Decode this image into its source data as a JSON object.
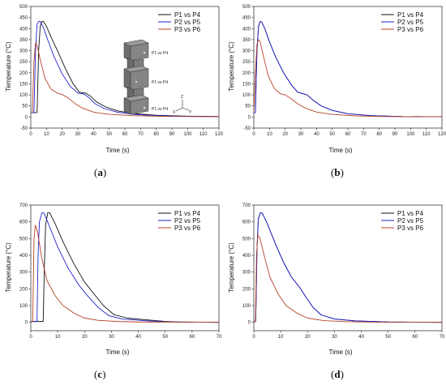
{
  "colors": {
    "P1 vs P4": "#111111",
    "P2 vs P5": "#2222cc",
    "P3 vs P6": "#b5432a"
  },
  "chart_data": [
    {
      "id": "a",
      "panel_label": "a",
      "type": "line",
      "xlabel": "Time (s)",
      "ylabel": "Temperature (°C)",
      "xlim": [
        0,
        120
      ],
      "ylim": [
        -50,
        500
      ],
      "xticks": [
        0,
        10,
        20,
        30,
        40,
        50,
        60,
        70,
        80,
        90,
        100,
        110,
        120
      ],
      "yticks": [
        -50,
        0,
        50,
        100,
        150,
        200,
        250,
        300,
        350,
        400,
        450,
        500
      ],
      "legend_position": "top-right",
      "series": [
        {
          "name": "P1 vs P4",
          "points": [
            [
              0,
              20
            ],
            [
              4,
              20
            ],
            [
              5,
              300
            ],
            [
              6,
              410
            ],
            [
              7,
              432
            ],
            [
              8,
              432
            ],
            [
              10,
              410
            ],
            [
              13,
              360
            ],
            [
              17,
              300
            ],
            [
              22,
              220
            ],
            [
              27,
              150
            ],
            [
              31,
              112
            ],
            [
              35,
              108
            ],
            [
              38,
              95
            ],
            [
              42,
              68
            ],
            [
              48,
              45
            ],
            [
              55,
              28
            ],
            [
              65,
              16
            ],
            [
              80,
              8
            ],
            [
              100,
              4
            ],
            [
              120,
              2
            ]
          ]
        },
        {
          "name": "P2 vs P5",
          "points": [
            [
              0,
              20
            ],
            [
              2,
              20
            ],
            [
              3,
              300
            ],
            [
              4,
              420
            ],
            [
              5,
              432
            ],
            [
              6,
              432
            ],
            [
              8,
              405
            ],
            [
              11,
              345
            ],
            [
              15,
              270
            ],
            [
              20,
              195
            ],
            [
              25,
              140
            ],
            [
              30,
              108
            ],
            [
              34,
              104
            ],
            [
              37,
              88
            ],
            [
              41,
              60
            ],
            [
              47,
              38
            ],
            [
              55,
              22
            ],
            [
              65,
              12
            ],
            [
              80,
              6
            ],
            [
              100,
              3
            ],
            [
              120,
              2
            ]
          ]
        },
        {
          "name": "P3 vs P6",
          "points": [
            [
              0,
              20
            ],
            [
              1,
              20
            ],
            [
              2,
              250
            ],
            [
              3,
              335
            ],
            [
              4,
              325
            ],
            [
              6,
              260
            ],
            [
              9,
              175
            ],
            [
              13,
              125
            ],
            [
              17,
              108
            ],
            [
              20,
              102
            ],
            [
              24,
              85
            ],
            [
              28,
              62
            ],
            [
              33,
              40
            ],
            [
              40,
              22
            ],
            [
              50,
              12
            ],
            [
              65,
              6
            ],
            [
              85,
              3
            ],
            [
              120,
              1
            ]
          ]
        }
      ],
      "inset_labels": [
        "P1 vs P4",
        "P1 vs P4",
        "P1 vs P4"
      ],
      "axes_labels": [
        "Z",
        "X",
        "Y"
      ]
    },
    {
      "id": "b",
      "panel_label": "b",
      "type": "line",
      "xlabel": "Time (s)",
      "ylabel": "Temperature (°C)",
      "xlim": [
        0,
        120
      ],
      "ylim": [
        -50,
        500
      ],
      "xticks": [
        0,
        10,
        20,
        30,
        40,
        50,
        60,
        70,
        80,
        90,
        100,
        110,
        120
      ],
      "yticks": [
        -50,
        0,
        50,
        100,
        150,
        200,
        250,
        300,
        350,
        400,
        450,
        500
      ],
      "legend_position": "top-right",
      "series": [
        {
          "name": "P1 vs P4",
          "points": [
            [
              0,
              20
            ],
            [
              1,
              20
            ],
            [
              2,
              300
            ],
            [
              3,
              410
            ],
            [
              4,
              432
            ],
            [
              5,
              430
            ],
            [
              7,
              400
            ],
            [
              10,
              340
            ],
            [
              14,
              270
            ],
            [
              19,
              200
            ],
            [
              24,
              145
            ],
            [
              28,
              112
            ],
            [
              31,
              106
            ],
            [
              34,
              100
            ],
            [
              38,
              75
            ],
            [
              43,
              50
            ],
            [
              50,
              30
            ],
            [
              60,
              15
            ],
            [
              75,
              6
            ],
            [
              95,
              2
            ],
            [
              120,
              1
            ]
          ]
        },
        {
          "name": "P2 vs P5",
          "points": [
            [
              0,
              20
            ],
            [
              1,
              20
            ],
            [
              2,
              300
            ],
            [
              3,
              410
            ],
            [
              4,
              432
            ],
            [
              5,
              430
            ],
            [
              7,
              400
            ],
            [
              10,
              340
            ],
            [
              14,
              270
            ],
            [
              19,
              200
            ],
            [
              24,
              145
            ],
            [
              28,
              112
            ],
            [
              31,
              106
            ],
            [
              34,
              100
            ],
            [
              38,
              75
            ],
            [
              43,
              50
            ],
            [
              50,
              30
            ],
            [
              60,
              15
            ],
            [
              75,
              6
            ],
            [
              95,
              2
            ],
            [
              120,
              1
            ]
          ]
        },
        {
          "name": "P3 vs P6",
          "points": [
            [
              0,
              20
            ],
            [
              1,
              200
            ],
            [
              2,
              330
            ],
            [
              3,
              350
            ],
            [
              4,
              340
            ],
            [
              6,
              280
            ],
            [
              9,
              190
            ],
            [
              13,
              130
            ],
            [
              17,
              105
            ],
            [
              20,
              100
            ],
            [
              24,
              82
            ],
            [
              28,
              60
            ],
            [
              33,
              40
            ],
            [
              40,
              22
            ],
            [
              50,
              12
            ],
            [
              65,
              5
            ],
            [
              85,
              2
            ],
            [
              120,
              1
            ]
          ]
        }
      ]
    },
    {
      "id": "c",
      "panel_label": "c",
      "type": "line",
      "xlabel": "Time (s)",
      "ylabel": "Temperature (°C)",
      "xlim": [
        0,
        70
      ],
      "ylim": [
        -50,
        700
      ],
      "xticks": [
        0,
        10,
        20,
        30,
        40,
        50,
        60,
        70
      ],
      "yticks": [
        0,
        100,
        200,
        300,
        400,
        500,
        600,
        700
      ],
      "legend_position": "top-right",
      "series": [
        {
          "name": "P1 vs P4",
          "points": [
            [
              0,
              5
            ],
            [
              4.6,
              5
            ],
            [
              5,
              300
            ],
            [
              5.5,
              580
            ],
            [
              6.3,
              655
            ],
            [
              7,
              655
            ],
            [
              9,
              590
            ],
            [
              12,
              480
            ],
            [
              16,
              350
            ],
            [
              20,
              240
            ],
            [
              23,
              180
            ],
            [
              27,
              100
            ],
            [
              31,
              45
            ],
            [
              36,
              25
            ],
            [
              43,
              15
            ],
            [
              50,
              5
            ],
            [
              55,
              2
            ],
            [
              70,
              0
            ]
          ]
        },
        {
          "name": "P2 vs P5",
          "points": [
            [
              0,
              5
            ],
            [
              2.3,
              5
            ],
            [
              2.7,
              400
            ],
            [
              3.2,
              600
            ],
            [
              4.2,
              655
            ],
            [
              5,
              650
            ],
            [
              7,
              570
            ],
            [
              10,
              450
            ],
            [
              14,
              320
            ],
            [
              18,
              220
            ],
            [
              21,
              160
            ],
            [
              25,
              90
            ],
            [
              29,
              40
            ],
            [
              34,
              20
            ],
            [
              42,
              10
            ],
            [
              50,
              3
            ],
            [
              70,
              0
            ]
          ]
        },
        {
          "name": "P3 vs P6",
          "points": [
            [
              0,
              5
            ],
            [
              0.7,
              5
            ],
            [
              1.2,
              500
            ],
            [
              1.7,
              580
            ],
            [
              2.5,
              540
            ],
            [
              4,
              390
            ],
            [
              6,
              250
            ],
            [
              9,
              160
            ],
            [
              12,
              100
            ],
            [
              16,
              55
            ],
            [
              20,
              25
            ],
            [
              25,
              12
            ],
            [
              32,
              5
            ],
            [
              40,
              2
            ],
            [
              70,
              0
            ]
          ]
        }
      ]
    },
    {
      "id": "d",
      "panel_label": "d",
      "type": "line",
      "xlabel": "Time (s)",
      "ylabel": "Temperature (°C)",
      "xlim": [
        0,
        70
      ],
      "ylim": [
        -50,
        700
      ],
      "xticks": [
        0,
        10,
        20,
        30,
        40,
        50,
        60,
        70
      ],
      "yticks": [
        0,
        100,
        200,
        300,
        400,
        500,
        600,
        700
      ],
      "legend_position": "top-right",
      "series": [
        {
          "name": "P1 vs P4",
          "points": [
            [
              0,
              5
            ],
            [
              0.7,
              5
            ],
            [
              1.2,
              450
            ],
            [
              1.7,
              620
            ],
            [
              2.5,
              655
            ],
            [
              3.2,
              650
            ],
            [
              5,
              590
            ],
            [
              8,
              470
            ],
            [
              11,
              360
            ],
            [
              14,
              270
            ],
            [
              17,
              210
            ],
            [
              19,
              160
            ],
            [
              22,
              90
            ],
            [
              25,
              45
            ],
            [
              30,
              20
            ],
            [
              38,
              8
            ],
            [
              50,
              2
            ],
            [
              70,
              0
            ]
          ]
        },
        {
          "name": "P2 vs P5",
          "points": [
            [
              0,
              5
            ],
            [
              0.7,
              5
            ],
            [
              1.2,
              450
            ],
            [
              1.7,
              620
            ],
            [
              2.5,
              655
            ],
            [
              3.2,
              650
            ],
            [
              5,
              590
            ],
            [
              8,
              470
            ],
            [
              11,
              360
            ],
            [
              14,
              270
            ],
            [
              17,
              210
            ],
            [
              19,
              160
            ],
            [
              22,
              90
            ],
            [
              25,
              45
            ],
            [
              30,
              20
            ],
            [
              38,
              8
            ],
            [
              50,
              2
            ],
            [
              70,
              0
            ]
          ]
        },
        {
          "name": "P3 vs P6",
          "points": [
            [
              0,
              5
            ],
            [
              0.6,
              5
            ],
            [
              1.0,
              400
            ],
            [
              1.5,
              520
            ],
            [
              2.3,
              500
            ],
            [
              4,
              390
            ],
            [
              6,
              270
            ],
            [
              9,
              170
            ],
            [
              12,
              100
            ],
            [
              16,
              55
            ],
            [
              20,
              25
            ],
            [
              26,
              10
            ],
            [
              34,
              4
            ],
            [
              45,
              1
            ],
            [
              70,
              0
            ]
          ]
        }
      ]
    }
  ]
}
